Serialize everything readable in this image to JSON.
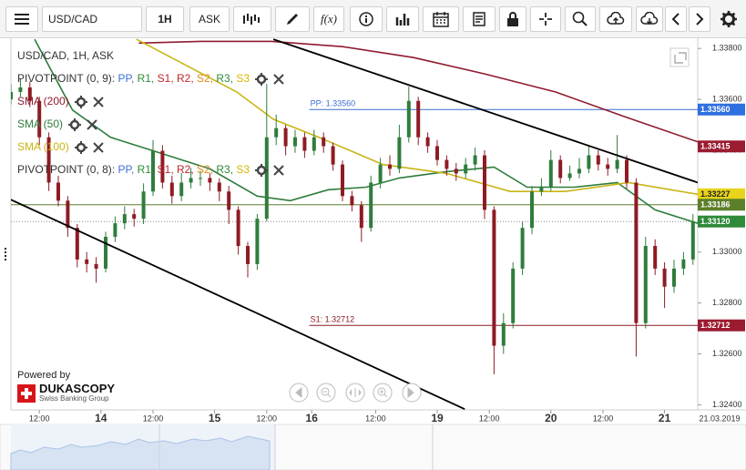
{
  "toolbar": {
    "symbol": "USD/CAD",
    "period": "1H",
    "side": "ASK",
    "fx": "f(x)"
  },
  "branding": {
    "powered_by": "Powered by",
    "name": "DUKASCOPY",
    "tagline": "Swiss Banking Group"
  },
  "chart_data": {
    "type": "candlestick",
    "symbol_label": "USD/CAD, 1H, ASK",
    "cursor_date": "21.03.2019",
    "up_color": "#2f7d3c",
    "down_color": "#8e1b24",
    "x": [
      0,
      2,
      4,
      6,
      8,
      10,
      12,
      14,
      16,
      18,
      20,
      22,
      24,
      26,
      28,
      30,
      32,
      34,
      36,
      38,
      40,
      42,
      44,
      46,
      48,
      50,
      52,
      54,
      56,
      58,
      60,
      62,
      64,
      66,
      68,
      70,
      72,
      74,
      76,
      78,
      80,
      82,
      84,
      86,
      88,
      90,
      92,
      94,
      96,
      98,
      100,
      102,
      104,
      106,
      108,
      110,
      112,
      114,
      116,
      118,
      120,
      122,
      124,
      126,
      128,
      130,
      132,
      134,
      136,
      138,
      140,
      142,
      144
    ],
    "open": [
      1.336,
      1.33629,
      1.33647,
      1.33594,
      1.33451,
      1.33273,
      1.33202,
      1.33095,
      1.32971,
      1.32953,
      1.32935,
      1.3306,
      1.33113,
      1.33149,
      1.33131,
      1.33238,
      1.33398,
      1.33273,
      1.3322,
      1.33273,
      1.33291,
      1.33291,
      1.33273,
      1.33238,
      1.33166,
      1.33024,
      1.32953,
      1.33131,
      1.33451,
      1.33487,
      1.33416,
      1.33451,
      1.33398,
      1.33451,
      1.33416,
      1.33344,
      1.3322,
      1.33184,
      1.33095,
      1.33273,
      1.33344,
      1.33327,
      1.33451,
      1.33594,
      1.33451,
      1.33416,
      1.33362,
      1.33327,
      1.33309,
      1.33344,
      1.3338,
      1.33166,
      1.32632,
      1.32721,
      1.32935,
      1.33095,
      1.33238,
      1.33255,
      1.33362,
      1.33291,
      1.33309,
      1.33327,
      1.3338,
      1.33344,
      1.33327,
      1.33362,
      1.33273,
      1.32721,
      1.33024,
      1.32935,
      1.32864,
      1.32935,
      1.32971
    ],
    "high": [
      1.3366,
      1.3368,
      1.3367,
      1.3361,
      1.3347,
      1.333,
      1.3322,
      1.3311,
      1.33,
      1.3298,
      1.3308,
      1.3314,
      1.3318,
      1.3317,
      1.3327,
      1.3344,
      1.3342,
      1.333,
      1.3331,
      1.3333,
      1.3332,
      1.3331,
      1.3329,
      1.3326,
      1.3318,
      1.3304,
      1.3315,
      1.3366,
      1.3354,
      1.335,
      1.3348,
      1.3347,
      1.3348,
      1.3347,
      1.3343,
      1.3336,
      1.3324,
      1.332,
      1.333,
      1.3337,
      1.3338,
      1.335,
      1.3365,
      1.3361,
      1.3347,
      1.3344,
      1.3338,
      1.3335,
      1.3337,
      1.3341,
      1.334,
      1.3318,
      1.3276,
      1.3296,
      1.3312,
      1.3326,
      1.3329,
      1.334,
      1.3338,
      1.3334,
      1.3337,
      1.3342,
      1.334,
      1.3337,
      1.3346,
      1.3338,
      1.3329,
      1.3306,
      1.3305,
      1.3296,
      1.3297,
      1.33,
      1.3315
    ],
    "low": [
      1.3358,
      1.3361,
      1.3357,
      1.3342,
      1.3324,
      1.3318,
      1.3306,
      1.3294,
      1.3292,
      1.3288,
      1.3292,
      1.3304,
      1.3309,
      1.331,
      1.3311,
      1.3322,
      1.3325,
      1.3319,
      1.332,
      1.3325,
      1.3326,
      1.3324,
      1.332,
      1.3311,
      1.3299,
      1.329,
      1.3293,
      1.3312,
      1.3342,
      1.3338,
      1.3339,
      1.3337,
      1.3338,
      1.3339,
      1.3332,
      1.332,
      1.3316,
      1.3304,
      1.3308,
      1.3325,
      1.333,
      1.3331,
      1.3343,
      1.3342,
      1.3339,
      1.3334,
      1.333,
      1.3328,
      1.3329,
      1.3332,
      1.3313,
      1.3252,
      1.326,
      1.327,
      1.3291,
      1.3307,
      1.3322,
      1.3324,
      1.3327,
      1.3328,
      1.3329,
      1.3331,
      1.3332,
      1.333,
      1.3331,
      1.3325,
      1.3259,
      1.327,
      1.3291,
      1.3278,
      1.3284,
      1.3291,
      1.3295
    ],
    "close": [
      1.33629,
      1.33647,
      1.33594,
      1.33451,
      1.33273,
      1.33202,
      1.33095,
      1.32971,
      1.32953,
      1.32935,
      1.3306,
      1.33113,
      1.33149,
      1.33131,
      1.33238,
      1.33398,
      1.33273,
      1.3322,
      1.33273,
      1.33291,
      1.33291,
      1.33273,
      1.33238,
      1.33166,
      1.33024,
      1.32953,
      1.33131,
      1.33451,
      1.33487,
      1.33416,
      1.33451,
      1.33398,
      1.33451,
      1.33416,
      1.33344,
      1.3322,
      1.33184,
      1.33095,
      1.33273,
      1.33344,
      1.33327,
      1.33451,
      1.33594,
      1.33451,
      1.33416,
      1.33362,
      1.33327,
      1.33309,
      1.33344,
      1.3338,
      1.33166,
      1.32632,
      1.32721,
      1.32935,
      1.33095,
      1.33238,
      1.33255,
      1.33362,
      1.33291,
      1.33309,
      1.33327,
      1.3338,
      1.33344,
      1.33327,
      1.33362,
      1.33273,
      1.32721,
      1.33024,
      1.32935,
      1.32864,
      1.32935,
      1.32971,
      1.3312
    ],
    "xlim": [
      0,
      145
    ],
    "xticks": [
      {
        "value": 6,
        "label": "12:00"
      },
      {
        "value": 19,
        "label": "14"
      },
      {
        "value": 30,
        "label": "12:00"
      },
      {
        "value": 43,
        "label": "15"
      },
      {
        "value": 54,
        "label": "12:00"
      },
      {
        "value": 63.5,
        "label": "16"
      },
      {
        "value": 77,
        "label": "12:00"
      },
      {
        "value": 90,
        "label": "19"
      },
      {
        "value": 101,
        "label": "12:00"
      },
      {
        "value": 114,
        "label": "20"
      },
      {
        "value": 125,
        "label": "12:00"
      },
      {
        "value": 138,
        "label": "21"
      }
    ],
    "ylim": [
      1.3238,
      1.3384
    ],
    "yticks": [
      {
        "value": 1.338,
        "label": "1.33800"
      },
      {
        "value": 1.336,
        "label": "1.33600"
      },
      {
        "value": 1.334,
        "label": "1.33400"
      },
      {
        "value": 1.332,
        "label": "1.33200"
      },
      {
        "value": 1.33,
        "label": "1.33000"
      },
      {
        "value": 1.328,
        "label": "1.32800"
      },
      {
        "value": 1.326,
        "label": "1.32600"
      },
      {
        "value": 1.324,
        "label": "1.32400"
      }
    ],
    "grid": false,
    "series": [
      {
        "name": "SMA (200)",
        "color": "#8e1b2e",
        "x": [
          27,
          40,
          55,
          70,
          85,
          100,
          115,
          130,
          145
        ],
        "values": [
          1.33821,
          1.33828,
          1.33828,
          1.33807,
          1.33764,
          1.337,
          1.33629,
          1.33529,
          1.33433
        ]
      },
      {
        "name": "SMA (50)",
        "color": "#2f7d3c",
        "x": [
          5,
          13,
          21,
          30,
          42,
          52,
          59,
          67,
          75,
          82,
          92,
          102,
          109,
          119,
          128,
          136,
          145
        ],
        "values": [
          1.33836,
          1.33558,
          1.33451,
          1.33398,
          1.33327,
          1.3322,
          1.33202,
          1.33245,
          1.33255,
          1.33291,
          1.33316,
          1.33334,
          1.33255,
          1.33255,
          1.33273,
          1.33166,
          1.33113
        ]
      },
      {
        "name": "SMA (100)",
        "color": "#c9b416",
        "x": [
          26.5,
          47.7,
          55.4,
          65,
          78.5,
          92,
          105.4,
          117,
          130.4,
          145
        ],
        "values": [
          1.33836,
          1.33629,
          1.33522,
          1.33451,
          1.33344,
          1.33309,
          1.33238,
          1.33238,
          1.33273,
          1.33227
        ]
      }
    ],
    "trendlines": [
      {
        "color": "#000000",
        "x": [
          55.4,
          145
        ],
        "values": [
          1.33836,
          1.33273
        ]
      },
      {
        "color": "#000000",
        "x": [
          0,
          95.8
        ],
        "values": [
          1.33206,
          1.32383
        ]
      }
    ],
    "levels": [
      {
        "label": "PP: 1.33560",
        "value": 1.3356,
        "color": "#3b6fd6",
        "x_start": 63
      },
      {
        "label": "S1: 1.32712",
        "value": 1.32712,
        "color": "#8e1b24",
        "x_start": 63
      }
    ],
    "price_tags": [
      {
        "value": 1.3356,
        "label": "1.33560",
        "color": "#2f6fe0"
      },
      {
        "value": 1.33415,
        "label": "1.33415",
        "color": "#9b1b30"
      },
      {
        "value": 1.33227,
        "label": "1.33227",
        "color": "#e8d41a"
      },
      {
        "value": 1.33186,
        "label": "1.33186",
        "color": "#5c7f2a",
        "line": "solid"
      },
      {
        "value": 1.3312,
        "label": "1.33120",
        "color": "#2f8a3a",
        "line": "dotted"
      },
      {
        "value": 1.32712,
        "label": "1.32712",
        "color": "#9b1b30"
      }
    ],
    "pivot_indicators": [
      {
        "name": "PIVOTPOINT (0, 9)",
        "parts": [
          {
            "text": ": ",
            "color": "#444444"
          },
          {
            "text": "PP, ",
            "color": "#3b6fd6"
          },
          {
            "text": "R1, ",
            "color": "#2f8a3a"
          },
          {
            "text": "S1, ",
            "color": "#c0262b"
          },
          {
            "text": "R2, ",
            "color": "#c0262b"
          },
          {
            "text": "S2, ",
            "color": "#e08a12"
          },
          {
            "text": "R3, ",
            "color": "#2f8a3a"
          },
          {
            "text": "S3",
            "color": "#d4b800"
          }
        ]
      },
      {
        "name": "PIVOTPOINT (0, 8)",
        "parts": [
          {
            "text": ": ",
            "color": "#444444"
          },
          {
            "text": "PP, ",
            "color": "#3b6fd6"
          },
          {
            "text": "R1, ",
            "color": "#2f8a3a"
          },
          {
            "text": "S1, ",
            "color": "#c0262b"
          },
          {
            "text": "R2, ",
            "color": "#c0262b"
          },
          {
            "text": "S2, ",
            "color": "#e08a12"
          },
          {
            "text": "R3, ",
            "color": "#2f8a3a"
          },
          {
            "text": "S3",
            "color": "#d4b800"
          }
        ]
      }
    ]
  }
}
